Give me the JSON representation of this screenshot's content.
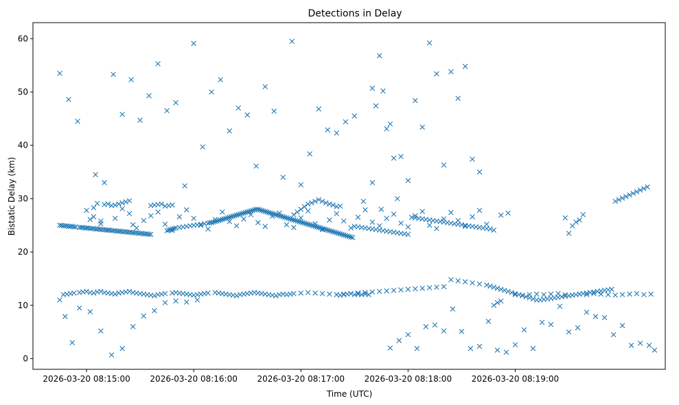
{
  "chart_data": {
    "type": "scatter",
    "title": "Detections in Delay",
    "xlabel": "Time (UTC)",
    "ylabel": "Bistatic Delay (km)",
    "xlim_seconds_after_08_14_00": [
      30,
      384
    ],
    "ylim": [
      -2,
      63
    ],
    "y_ticks": [
      0,
      10,
      20,
      30,
      40,
      50,
      60
    ],
    "x_ticks": [
      {
        "label": "2026-03-20 08:15:00",
        "t": 60
      },
      {
        "label": "2026-03-20 08:16:00",
        "t": 120
      },
      {
        "label": "2026-03-20 08:17:00",
        "t": 180
      },
      {
        "label": "2026-03-20 08:18:00",
        "t": 240
      },
      {
        "label": "2026-03-20 08:19:00",
        "t": 300
      }
    ],
    "marker": "x",
    "marker_color": "#1f77b4",
    "series": [
      {
        "name": "detections",
        "t_seconds": [
          45,
          46,
          47,
          48,
          49,
          50,
          51,
          52,
          53,
          54,
          56,
          57,
          58,
          59,
          60,
          61,
          62,
          63,
          64,
          65,
          66,
          67,
          68,
          69,
          70,
          71,
          72,
          73,
          74,
          75,
          76,
          77,
          78,
          79,
          80,
          81,
          82,
          83,
          84,
          85,
          86,
          87,
          88,
          89,
          90,
          91,
          92,
          93,
          94,
          95,
          96,
          105,
          106,
          107,
          108,
          109,
          110,
          112,
          114,
          116,
          118,
          120,
          122,
          124,
          126,
          128,
          129,
          130,
          131,
          132,
          133,
          134,
          135,
          136,
          137,
          138,
          139,
          140,
          141,
          142,
          143,
          144,
          145,
          146,
          147,
          148,
          149,
          150,
          151,
          152,
          153,
          154,
          155,
          156,
          157,
          158,
          159,
          160,
          161,
          162,
          163,
          164,
          165,
          166,
          167,
          168,
          169,
          170,
          171,
          172,
          173,
          174,
          175,
          176,
          177,
          178,
          179,
          180,
          181,
          182,
          183,
          184,
          185,
          186,
          187,
          188,
          189,
          190,
          191,
          192,
          193,
          194,
          195,
          196,
          197,
          198,
          199,
          200,
          201,
          202,
          203,
          204,
          205,
          206,
          207,
          208,
          209,
          210,
          212,
          214,
          216,
          218,
          220,
          222,
          224,
          226,
          228,
          230,
          232,
          234,
          236,
          238,
          240,
          242,
          244,
          246,
          248,
          250,
          252,
          254,
          256,
          258,
          260,
          262,
          264,
          266,
          268,
          270,
          272,
          274,
          276,
          278,
          280,
          282,
          284,
          286,
          288,
          290,
          292,
          45,
          47,
          49,
          51,
          53,
          56,
          58,
          60,
          62,
          64,
          66,
          68,
          70,
          72,
          74,
          76,
          78,
          80,
          82,
          84,
          86,
          88,
          90,
          92,
          94,
          96,
          98,
          100,
          102,
          104,
          108,
          110,
          112,
          114,
          116,
          118,
          120,
          122,
          124,
          126,
          128,
          132,
          134,
          136,
          138,
          140,
          142,
          144,
          146,
          148,
          150,
          152,
          154,
          156,
          158,
          160,
          162,
          164,
          166,
          168,
          170,
          172,
          174,
          176,
          180,
          184,
          188,
          192,
          196,
          200,
          204,
          208,
          212,
          216,
          220,
          224,
          228,
          232,
          236,
          240,
          244,
          248,
          252,
          256,
          260,
          264,
          268,
          272,
          276,
          280,
          284,
          286,
          288,
          290,
          292,
          294,
          296,
          298,
          300,
          302,
          304,
          306,
          308,
          310,
          312,
          314,
          316,
          318,
          320,
          322,
          324,
          326,
          328,
          330,
          332,
          334,
          336,
          338,
          340,
          342,
          344,
          346,
          348,
          350,
          352,
          354,
          356,
          358,
          360,
          362,
          364,
          366,
          368,
          370,
          372,
          374,
          176,
          178,
          180,
          182,
          184,
          186,
          188,
          190,
          192,
          194,
          196,
          198,
          200,
          202,
          96,
          98,
          100,
          102,
          104,
          106,
          108,
          70,
          72,
          74,
          76,
          78,
          80,
          82,
          84,
          86,
          60,
          62,
          64,
          66,
          68,
          328,
          330,
          332,
          334,
          336,
          338,
          60,
          64,
          68,
          72,
          76,
          80,
          84,
          88,
          92,
          96,
          100,
          104,
          108,
          112,
          116,
          120,
          124,
          128,
          132,
          136,
          140,
          144,
          148,
          152,
          156,
          160,
          164,
          168,
          172,
          176,
          180,
          184,
          188,
          192,
          196,
          200,
          204,
          208,
          212,
          216,
          220,
          224,
          228,
          232,
          236,
          240,
          244,
          248,
          252,
          256,
          260,
          264,
          268,
          272,
          276,
          280,
          284,
          288,
          292,
          296,
          300,
          304,
          308,
          312,
          316,
          320,
          324,
          328,
          332,
          336,
          340,
          344,
          348,
          352,
          356,
          360,
          364,
          368,
          372,
          376,
          200,
          202,
          204,
          206,
          208,
          210,
          212,
          214,
          216,
          218,
          220,
          222,
          224,
          226,
          228,
          230,
          232,
          234,
          236,
          240,
          244,
          248,
          252,
          256,
          260,
          264,
          268,
          272,
          276,
          280,
          45,
          50,
          55,
          65,
          70,
          75,
          80,
          85,
          90,
          95,
          100,
          105,
          110,
          115,
          120,
          125,
          130,
          135,
          140,
          145,
          150,
          155,
          160,
          165,
          170,
          175,
          180,
          185,
          190,
          195,
          200,
          205,
          210,
          215,
          220,
          225,
          230,
          235,
          240,
          245,
          250,
          255,
          260,
          265,
          270,
          275,
          280,
          285,
          290,
          295,
          300,
          305,
          310,
          315,
          320,
          325,
          330,
          335,
          340,
          345,
          350,
          355,
          360,
          365,
          370,
          375,
          378,
          48,
          52,
          56,
          62,
          68,
          74,
          80,
          86,
          92,
          98,
          104,
          110,
          116,
          122,
          128,
          134,
          140,
          146,
          152,
          158,
          164,
          170,
          176,
          182,
          188,
          194,
          200,
          206,
          212,
          218,
          224,
          230,
          236,
          242,
          248,
          254,
          260,
          266,
          272,
          278,
          284,
          290,
          296,
          302,
          308,
          314,
          320,
          326,
          332,
          338,
          344,
          350,
          356,
          362,
          368,
          374,
          380
        ],
        "values": [
          25.0,
          25.0,
          24.9,
          24.9,
          24.9,
          24.8,
          24.8,
          24.8,
          24.7,
          24.7,
          24.6,
          24.6,
          24.6,
          24.5,
          24.5,
          24.5,
          24.4,
          24.4,
          24.4,
          24.3,
          24.3,
          24.3,
          24.2,
          24.2,
          24.2,
          24.1,
          24.1,
          24.1,
          24.0,
          24.0,
          24.0,
          23.9,
          23.9,
          23.9,
          23.8,
          23.8,
          23.8,
          23.7,
          23.7,
          23.7,
          23.6,
          23.6,
          23.6,
          23.5,
          23.5,
          23.5,
          23.4,
          23.4,
          23.4,
          23.3,
          23.3,
          24.0,
          24.1,
          24.2,
          24.3,
          24.4,
          24.5,
          24.6,
          24.7,
          24.8,
          24.9,
          25.0,
          25.1,
          25.2,
          25.3,
          25.4,
          25.5,
          25.5,
          25.6,
          25.7,
          25.8,
          25.9,
          26.0,
          26.1,
          26.2,
          26.3,
          26.4,
          26.5,
          26.6,
          26.7,
          26.8,
          26.9,
          27.0,
          27.1,
          27.2,
          27.3,
          27.4,
          27.5,
          27.6,
          27.7,
          27.8,
          27.9,
          28.0,
          28.0,
          27.9,
          27.8,
          27.7,
          27.6,
          27.5,
          27.4,
          27.3,
          27.2,
          27.1,
          27.0,
          26.9,
          26.8,
          26.7,
          26.6,
          26.5,
          26.4,
          26.3,
          26.2,
          26.1,
          26.0,
          25.9,
          25.8,
          25.7,
          25.6,
          25.5,
          25.4,
          25.3,
          25.2,
          25.1,
          25.0,
          24.9,
          24.8,
          24.7,
          24.6,
          24.5,
          24.4,
          24.3,
          24.2,
          24.1,
          24.0,
          23.9,
          23.8,
          23.7,
          23.6,
          23.5,
          23.4,
          23.3,
          23.2,
          23.1,
          23.0,
          22.9,
          22.8,
          22.7,
          24.8,
          24.7,
          24.6,
          24.5,
          24.4,
          24.3,
          24.2,
          24.1,
          24.0,
          23.9,
          23.8,
          23.7,
          23.6,
          23.5,
          23.4,
          23.3,
          26.5,
          26.4,
          26.3,
          26.2,
          26.1,
          26.0,
          25.9,
          25.8,
          25.7,
          25.6,
          25.5,
          25.4,
          25.3,
          25.2,
          25.1,
          25.0,
          24.9,
          24.8,
          24.7,
          24.6,
          24.5,
          24.4,
          24.3,
          10.0,
          10.5,
          10.8,
          11.0,
          12.0,
          12.1,
          12.2,
          12.3,
          12.4,
          12.5,
          12.6,
          12.4,
          12.3,
          12.5,
          12.6,
          12.4,
          12.3,
          12.2,
          12.1,
          12.3,
          12.4,
          12.5,
          12.6,
          12.4,
          12.3,
          12.2,
          12.1,
          12.0,
          11.9,
          11.8,
          12.0,
          12.1,
          12.2,
          12.3,
          12.4,
          12.3,
          12.2,
          12.1,
          12.0,
          11.9,
          12.0,
          12.1,
          12.2,
          12.3,
          12.4,
          12.3,
          12.2,
          12.1,
          12.0,
          11.9,
          11.8,
          12.0,
          12.1,
          12.2,
          12.3,
          12.4,
          12.3,
          12.2,
          12.1,
          12.0,
          11.9,
          11.8,
          12.0,
          12.1,
          12.0,
          12.1,
          12.2,
          12.3,
          12.4,
          12.3,
          12.2,
          12.1,
          12.0,
          12.1,
          12.2,
          12.3,
          12.4,
          12.5,
          12.6,
          12.7,
          12.8,
          12.9,
          13.0,
          13.1,
          13.2,
          13.3,
          13.4,
          13.5,
          14.8,
          14.6,
          14.4,
          14.2,
          14.0,
          13.8,
          13.6,
          13.4,
          13.2,
          13.0,
          12.8,
          12.6,
          12.4,
          12.2,
          12.0,
          11.8,
          11.6,
          11.4,
          11.2,
          11.0,
          11.0,
          11.1,
          11.2,
          11.3,
          11.4,
          11.5,
          11.6,
          11.7,
          11.8,
          11.9,
          12.0,
          12.1,
          12.2,
          12.3,
          12.4,
          12.5,
          12.6,
          12.7,
          12.8,
          12.9,
          13.0,
          29.5,
          29.8,
          30.1,
          30.4,
          30.7,
          31.0,
          31.3,
          31.6,
          31.9,
          32.2,
          27.0,
          27.5,
          28.0,
          28.5,
          29.0,
          29.2,
          29.5,
          29.8,
          29.5,
          29.2,
          29.0,
          28.8,
          28.5,
          28.6,
          28.7,
          28.8,
          28.9,
          29.0,
          28.6,
          28.7,
          28.8,
          28.9,
          29.0,
          28.7,
          28.8,
          29.0,
          29.2,
          29.4,
          29.6,
          25.1,
          24.5,
          26.1,
          28.3,
          29.1,
          25.8,
          26.4,
          23.5,
          24.9,
          25.6,
          26.0,
          27.0,
          27.8,
          26.6,
          25.3,
          24.1,
          26.3,
          28.1,
          27.2,
          24.5,
          25.9,
          26.8,
          27.5,
          25.2,
          24.0,
          26.6,
          27.9,
          26.3,
          25.0,
          24.3,
          26.1,
          27.5,
          25.7,
          24.9,
          26.2,
          27.0,
          25.5,
          24.8,
          26.7,
          27.3,
          25.1,
          24.6,
          26.4,
          27.7,
          25.3,
          24.2,
          26.0,
          27.2,
          25.8,
          24.5,
          26.5,
          27.9,
          25.6,
          24.9,
          26.3,
          27.1,
          25.4,
          24.7,
          26.8,
          27.6,
          25.0,
          24.4,
          26.2,
          27.4,
          25.9,
          24.8,
          26.6,
          27.8,
          25.2,
          24.1,
          26.9,
          27.3,
          12.0,
          11.9,
          12.0,
          12.1,
          12.0,
          12.1,
          12.2,
          12.0,
          11.9,
          12.1,
          12.0,
          12.2,
          12.1,
          12.0,
          11.9,
          12.0,
          12.1,
          12.2,
          12.0,
          12.1,
          12.0,
          11.9,
          12.0,
          12.1,
          12.2,
          12.0,
          12.1,
          12.0,
          12.1,
          12.0,
          50.7,
          47.4,
          56.8,
          50.2,
          43.1,
          44.0,
          37.6,
          30.0,
          37.9,
          33.4,
          48.4,
          43.4,
          59.2,
          53.4,
          36.3,
          53.8,
          48.8,
          54.8,
          37.4,
          35.0,
          53.5,
          48.6,
          44.5,
          34.5,
          33.0,
          53.3,
          45.8,
          52.3,
          44.7,
          49.3,
          55.3,
          46.5,
          48.0,
          32.4,
          59.1,
          39.7,
          50.0,
          52.3,
          42.7,
          47.0,
          45.7,
          36.1,
          51.0,
          46.4,
          34.0,
          59.5,
          32.6,
          38.4,
          46.8,
          42.9,
          42.3,
          44.4,
          45.5,
          29.5,
          33.0,
          28.0,
          2.0,
          3.4,
          4.5,
          1.9,
          6.0,
          6.3,
          5.2,
          9.3,
          5.1,
          1.9,
          2.3,
          7.0,
          1.6,
          1.2,
          2.6,
          5.4,
          1.9,
          6.8,
          6.4,
          9.8,
          5.0,
          5.8,
          8.7,
          7.9,
          7.7,
          4.5,
          6.2,
          2.5,
          2.9,
          2.5,
          1.6,
          7.9,
          3.0,
          9.5,
          8.8,
          5.2,
          0.7,
          1.9,
          6.0,
          8.0,
          9.0,
          10.5,
          10.8,
          10.6,
          11.0
        ]
      }
    ]
  }
}
